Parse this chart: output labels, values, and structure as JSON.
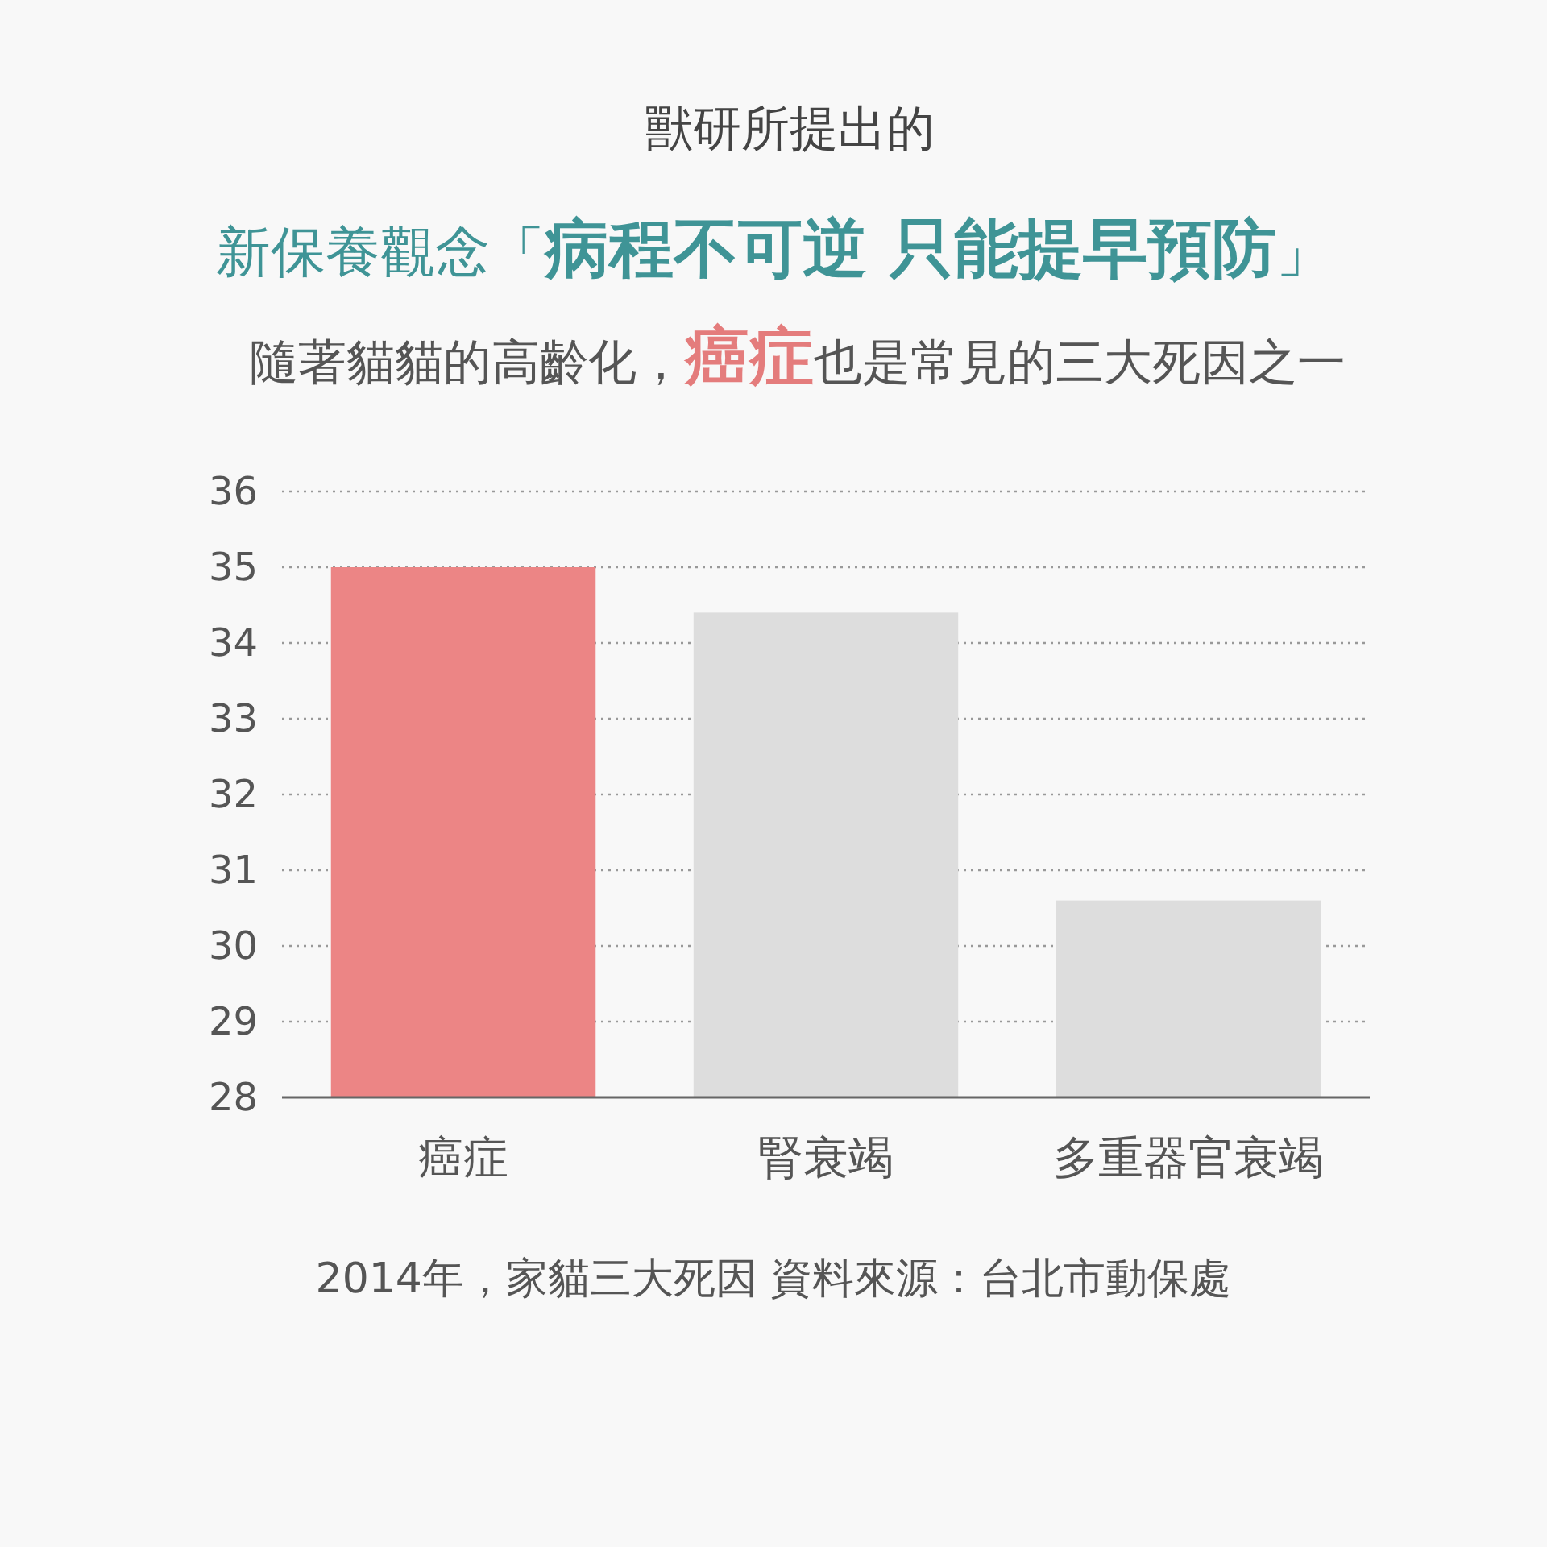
{
  "chart_data": {
    "type": "bar",
    "title": "獸研所提出的",
    "subtitle": "新保養觀念「**病程不可逆 只能提早預防**」",
    "annotations": [
      "隨著貓貓的高齡化，**癌症**也是常見的三大死因之一",
      "2014年，家貓三大死因 資料來源：台北市動保處"
    ],
    "categories": [
      "癌症",
      "腎衰竭",
      "多重器官衰竭"
    ],
    "values": [
      35.0,
      34.4,
      30.6
    ],
    "colors": [
      "#ec8585",
      "#dddddd",
      "#dddddd"
    ],
    "ylim": [
      28,
      36
    ],
    "yticks": [
      28,
      29,
      30,
      31,
      32,
      33,
      34,
      35,
      36
    ],
    "grid": "y"
  }
}
